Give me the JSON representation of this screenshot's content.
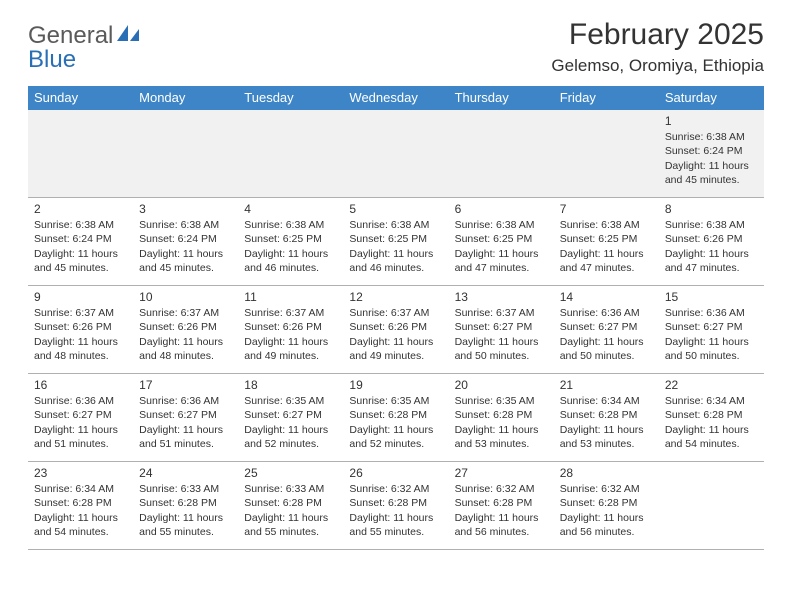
{
  "logo": {
    "text1": "General",
    "text2": "Blue"
  },
  "title": "February 2025",
  "location": "Gelemso, Oromiya, Ethiopia",
  "colors": {
    "header_bg": "#3d85c6",
    "logo_gray": "#5a5a5a",
    "logo_blue": "#2a6fb5",
    "row_border": "#b0b0b0",
    "first_row_bg": "#f1f1f1"
  },
  "day_headers": [
    "Sunday",
    "Monday",
    "Tuesday",
    "Wednesday",
    "Thursday",
    "Friday",
    "Saturday"
  ],
  "weeks": [
    [
      null,
      null,
      null,
      null,
      null,
      null,
      {
        "n": "1",
        "sr": "6:38 AM",
        "ss": "6:24 PM",
        "dl": "11 hours and 45 minutes."
      }
    ],
    [
      {
        "n": "2",
        "sr": "6:38 AM",
        "ss": "6:24 PM",
        "dl": "11 hours and 45 minutes."
      },
      {
        "n": "3",
        "sr": "6:38 AM",
        "ss": "6:24 PM",
        "dl": "11 hours and 45 minutes."
      },
      {
        "n": "4",
        "sr": "6:38 AM",
        "ss": "6:25 PM",
        "dl": "11 hours and 46 minutes."
      },
      {
        "n": "5",
        "sr": "6:38 AM",
        "ss": "6:25 PM",
        "dl": "11 hours and 46 minutes."
      },
      {
        "n": "6",
        "sr": "6:38 AM",
        "ss": "6:25 PM",
        "dl": "11 hours and 47 minutes."
      },
      {
        "n": "7",
        "sr": "6:38 AM",
        "ss": "6:25 PM",
        "dl": "11 hours and 47 minutes."
      },
      {
        "n": "8",
        "sr": "6:38 AM",
        "ss": "6:26 PM",
        "dl": "11 hours and 47 minutes."
      }
    ],
    [
      {
        "n": "9",
        "sr": "6:37 AM",
        "ss": "6:26 PM",
        "dl": "11 hours and 48 minutes."
      },
      {
        "n": "10",
        "sr": "6:37 AM",
        "ss": "6:26 PM",
        "dl": "11 hours and 48 minutes."
      },
      {
        "n": "11",
        "sr": "6:37 AM",
        "ss": "6:26 PM",
        "dl": "11 hours and 49 minutes."
      },
      {
        "n": "12",
        "sr": "6:37 AM",
        "ss": "6:26 PM",
        "dl": "11 hours and 49 minutes."
      },
      {
        "n": "13",
        "sr": "6:37 AM",
        "ss": "6:27 PM",
        "dl": "11 hours and 50 minutes."
      },
      {
        "n": "14",
        "sr": "6:36 AM",
        "ss": "6:27 PM",
        "dl": "11 hours and 50 minutes."
      },
      {
        "n": "15",
        "sr": "6:36 AM",
        "ss": "6:27 PM",
        "dl": "11 hours and 50 minutes."
      }
    ],
    [
      {
        "n": "16",
        "sr": "6:36 AM",
        "ss": "6:27 PM",
        "dl": "11 hours and 51 minutes."
      },
      {
        "n": "17",
        "sr": "6:36 AM",
        "ss": "6:27 PM",
        "dl": "11 hours and 51 minutes."
      },
      {
        "n": "18",
        "sr": "6:35 AM",
        "ss": "6:27 PM",
        "dl": "11 hours and 52 minutes."
      },
      {
        "n": "19",
        "sr": "6:35 AM",
        "ss": "6:28 PM",
        "dl": "11 hours and 52 minutes."
      },
      {
        "n": "20",
        "sr": "6:35 AM",
        "ss": "6:28 PM",
        "dl": "11 hours and 53 minutes."
      },
      {
        "n": "21",
        "sr": "6:34 AM",
        "ss": "6:28 PM",
        "dl": "11 hours and 53 minutes."
      },
      {
        "n": "22",
        "sr": "6:34 AM",
        "ss": "6:28 PM",
        "dl": "11 hours and 54 minutes."
      }
    ],
    [
      {
        "n": "23",
        "sr": "6:34 AM",
        "ss": "6:28 PM",
        "dl": "11 hours and 54 minutes."
      },
      {
        "n": "24",
        "sr": "6:33 AM",
        "ss": "6:28 PM",
        "dl": "11 hours and 55 minutes."
      },
      {
        "n": "25",
        "sr": "6:33 AM",
        "ss": "6:28 PM",
        "dl": "11 hours and 55 minutes."
      },
      {
        "n": "26",
        "sr": "6:32 AM",
        "ss": "6:28 PM",
        "dl": "11 hours and 55 minutes."
      },
      {
        "n": "27",
        "sr": "6:32 AM",
        "ss": "6:28 PM",
        "dl": "11 hours and 56 minutes."
      },
      {
        "n": "28",
        "sr": "6:32 AM",
        "ss": "6:28 PM",
        "dl": "11 hours and 56 minutes."
      },
      null
    ]
  ],
  "labels": {
    "sunrise": "Sunrise: ",
    "sunset": "Sunset: ",
    "daylight": "Daylight: "
  }
}
